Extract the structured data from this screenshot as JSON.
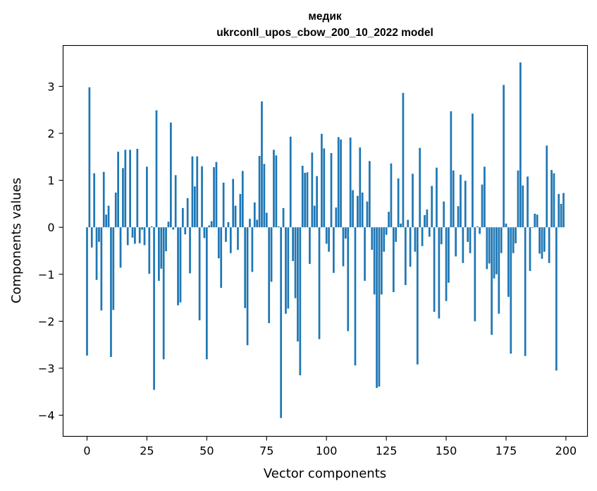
{
  "chart_data": {
    "type": "bar",
    "title_line1": "медик",
    "title_line2": "ukrconll_upos_cbow_200_10_2022 model",
    "xlabel": "Vector components",
    "ylabel": "Components values",
    "xlim": [
      -10,
      209
    ],
    "ylim": [
      -4.45,
      3.87
    ],
    "xticks": [
      0,
      25,
      50,
      75,
      100,
      125,
      150,
      175,
      200
    ],
    "yticks": [
      -4,
      -3,
      -2,
      -1,
      0,
      1,
      2,
      3
    ],
    "xtick_labels": [
      "0",
      "25",
      "50",
      "75",
      "100",
      "125",
      "150",
      "175",
      "200"
    ],
    "ytick_labels": [
      "−4",
      "−3",
      "−2",
      "−1",
      "0",
      "1",
      "2",
      "3"
    ],
    "bar_color": "#1f77b4",
    "grid": false,
    "x": [
      0,
      1,
      2,
      3,
      4,
      5,
      6,
      7,
      8,
      9,
      10,
      11,
      12,
      13,
      14,
      15,
      16,
      17,
      18,
      19,
      20,
      21,
      22,
      23,
      24,
      25,
      26,
      27,
      28,
      29,
      30,
      31,
      32,
      33,
      34,
      35,
      36,
      37,
      38,
      39,
      40,
      41,
      42,
      43,
      44,
      45,
      46,
      47,
      48,
      49,
      50,
      51,
      52,
      53,
      54,
      55,
      56,
      57,
      58,
      59,
      60,
      61,
      62,
      63,
      64,
      65,
      66,
      67,
      68,
      69,
      70,
      71,
      72,
      73,
      74,
      75,
      76,
      77,
      78,
      79,
      80,
      81,
      82,
      83,
      84,
      85,
      86,
      87,
      88,
      89,
      90,
      91,
      92,
      93,
      94,
      95,
      96,
      97,
      98,
      99,
      100,
      101,
      102,
      103,
      104,
      105,
      106,
      107,
      108,
      109,
      110,
      111,
      112,
      113,
      114,
      115,
      116,
      117,
      118,
      119,
      120,
      121,
      122,
      123,
      124,
      125,
      126,
      127,
      128,
      129,
      130,
      131,
      132,
      133,
      134,
      135,
      136,
      137,
      138,
      139,
      140,
      141,
      142,
      143,
      144,
      145,
      146,
      147,
      148,
      149,
      150,
      151,
      152,
      153,
      154,
      155,
      156,
      157,
      158,
      159,
      160,
      161,
      162,
      163,
      164,
      165,
      166,
      167,
      168,
      169,
      170,
      171,
      172,
      173,
      174,
      175,
      176,
      177,
      178,
      179,
      180,
      181,
      182,
      183,
      184,
      185,
      186,
      187,
      188,
      189,
      190,
      191,
      192,
      193,
      194,
      195,
      196,
      197,
      198,
      199
    ],
    "values": [
      -2.73,
      2.98,
      -0.43,
      1.15,
      -1.12,
      -0.31,
      -1.77,
      1.18,
      0.27,
      0.46,
      -2.76,
      -1.76,
      0.74,
      1.61,
      -0.86,
      1.26,
      1.65,
      -0.38,
      1.65,
      -0.22,
      -0.35,
      1.67,
      -0.34,
      -0.05,
      -0.38,
      1.29,
      -0.99,
      0.02,
      -3.46,
      2.49,
      -1.14,
      -0.88,
      -2.81,
      -0.51,
      0.12,
      2.23,
      -0.05,
      1.11,
      -1.66,
      -1.6,
      0.41,
      -0.15,
      0.62,
      -0.98,
      1.51,
      0.87,
      1.51,
      -1.98,
      1.3,
      -0.23,
      -2.81,
      0.04,
      0.13,
      1.28,
      1.39,
      -0.66,
      -1.29,
      0.95,
      -0.31,
      0.11,
      -0.55,
      1.03,
      0.46,
      -0.48,
      0.71,
      1.2,
      -1.72,
      -2.51,
      0.18,
      -0.95,
      0.53,
      0.16,
      1.52,
      2.68,
      1.35,
      0.31,
      -2.04,
      -1.16,
      1.65,
      1.53,
      0.02,
      -4.06,
      0.41,
      -1.84,
      -1.73,
      1.93,
      -0.72,
      -1.51,
      -2.43,
      -3.15,
      1.31,
      1.16,
      1.17,
      -0.78,
      1.59,
      0.46,
      1.09,
      -2.38,
      1.99,
      1.68,
      -0.35,
      -0.52,
      1.58,
      -0.97,
      0.42,
      1.92,
      1.87,
      -0.83,
      -0.24,
      -2.21,
      1.91,
      0.79,
      -2.94,
      0.67,
      1.7,
      0.74,
      -1.14,
      0.55,
      1.41,
      -0.48,
      -1.43,
      -3.42,
      -3.39,
      -1.43,
      -0.52,
      -0.16,
      0.33,
      1.36,
      -1.38,
      -0.31,
      1.04,
      0.08,
      2.86,
      -1.23,
      0.16,
      -0.84,
      1.14,
      -0.52,
      -2.92,
      1.69,
      -0.4,
      0.26,
      0.38,
      -0.2,
      0.88,
      -1.8,
      1.27,
      -1.94,
      -0.36,
      0.55,
      -1.57,
      -1.18,
      2.47,
      1.21,
      -0.62,
      0.45,
      1.12,
      -0.76,
      0.99,
      -0.31,
      -0.55,
      2.42,
      -2.0,
      0.02,
      -0.14,
      0.91,
      1.29,
      -0.89,
      -0.77,
      -2.29,
      -1.09,
      -1.0,
      -1.84,
      -0.55,
      3.03,
      0.08,
      -1.48,
      -2.69,
      -0.55,
      -0.34,
      1.21,
      3.51,
      0.89,
      -2.74,
      1.08,
      -0.93,
      -0.01,
      0.29,
      0.27,
      -0.56,
      -0.67,
      -0.52,
      1.74,
      -0.76,
      1.22,
      1.15,
      -3.05,
      0.71,
      0.5,
      0.73
    ]
  }
}
